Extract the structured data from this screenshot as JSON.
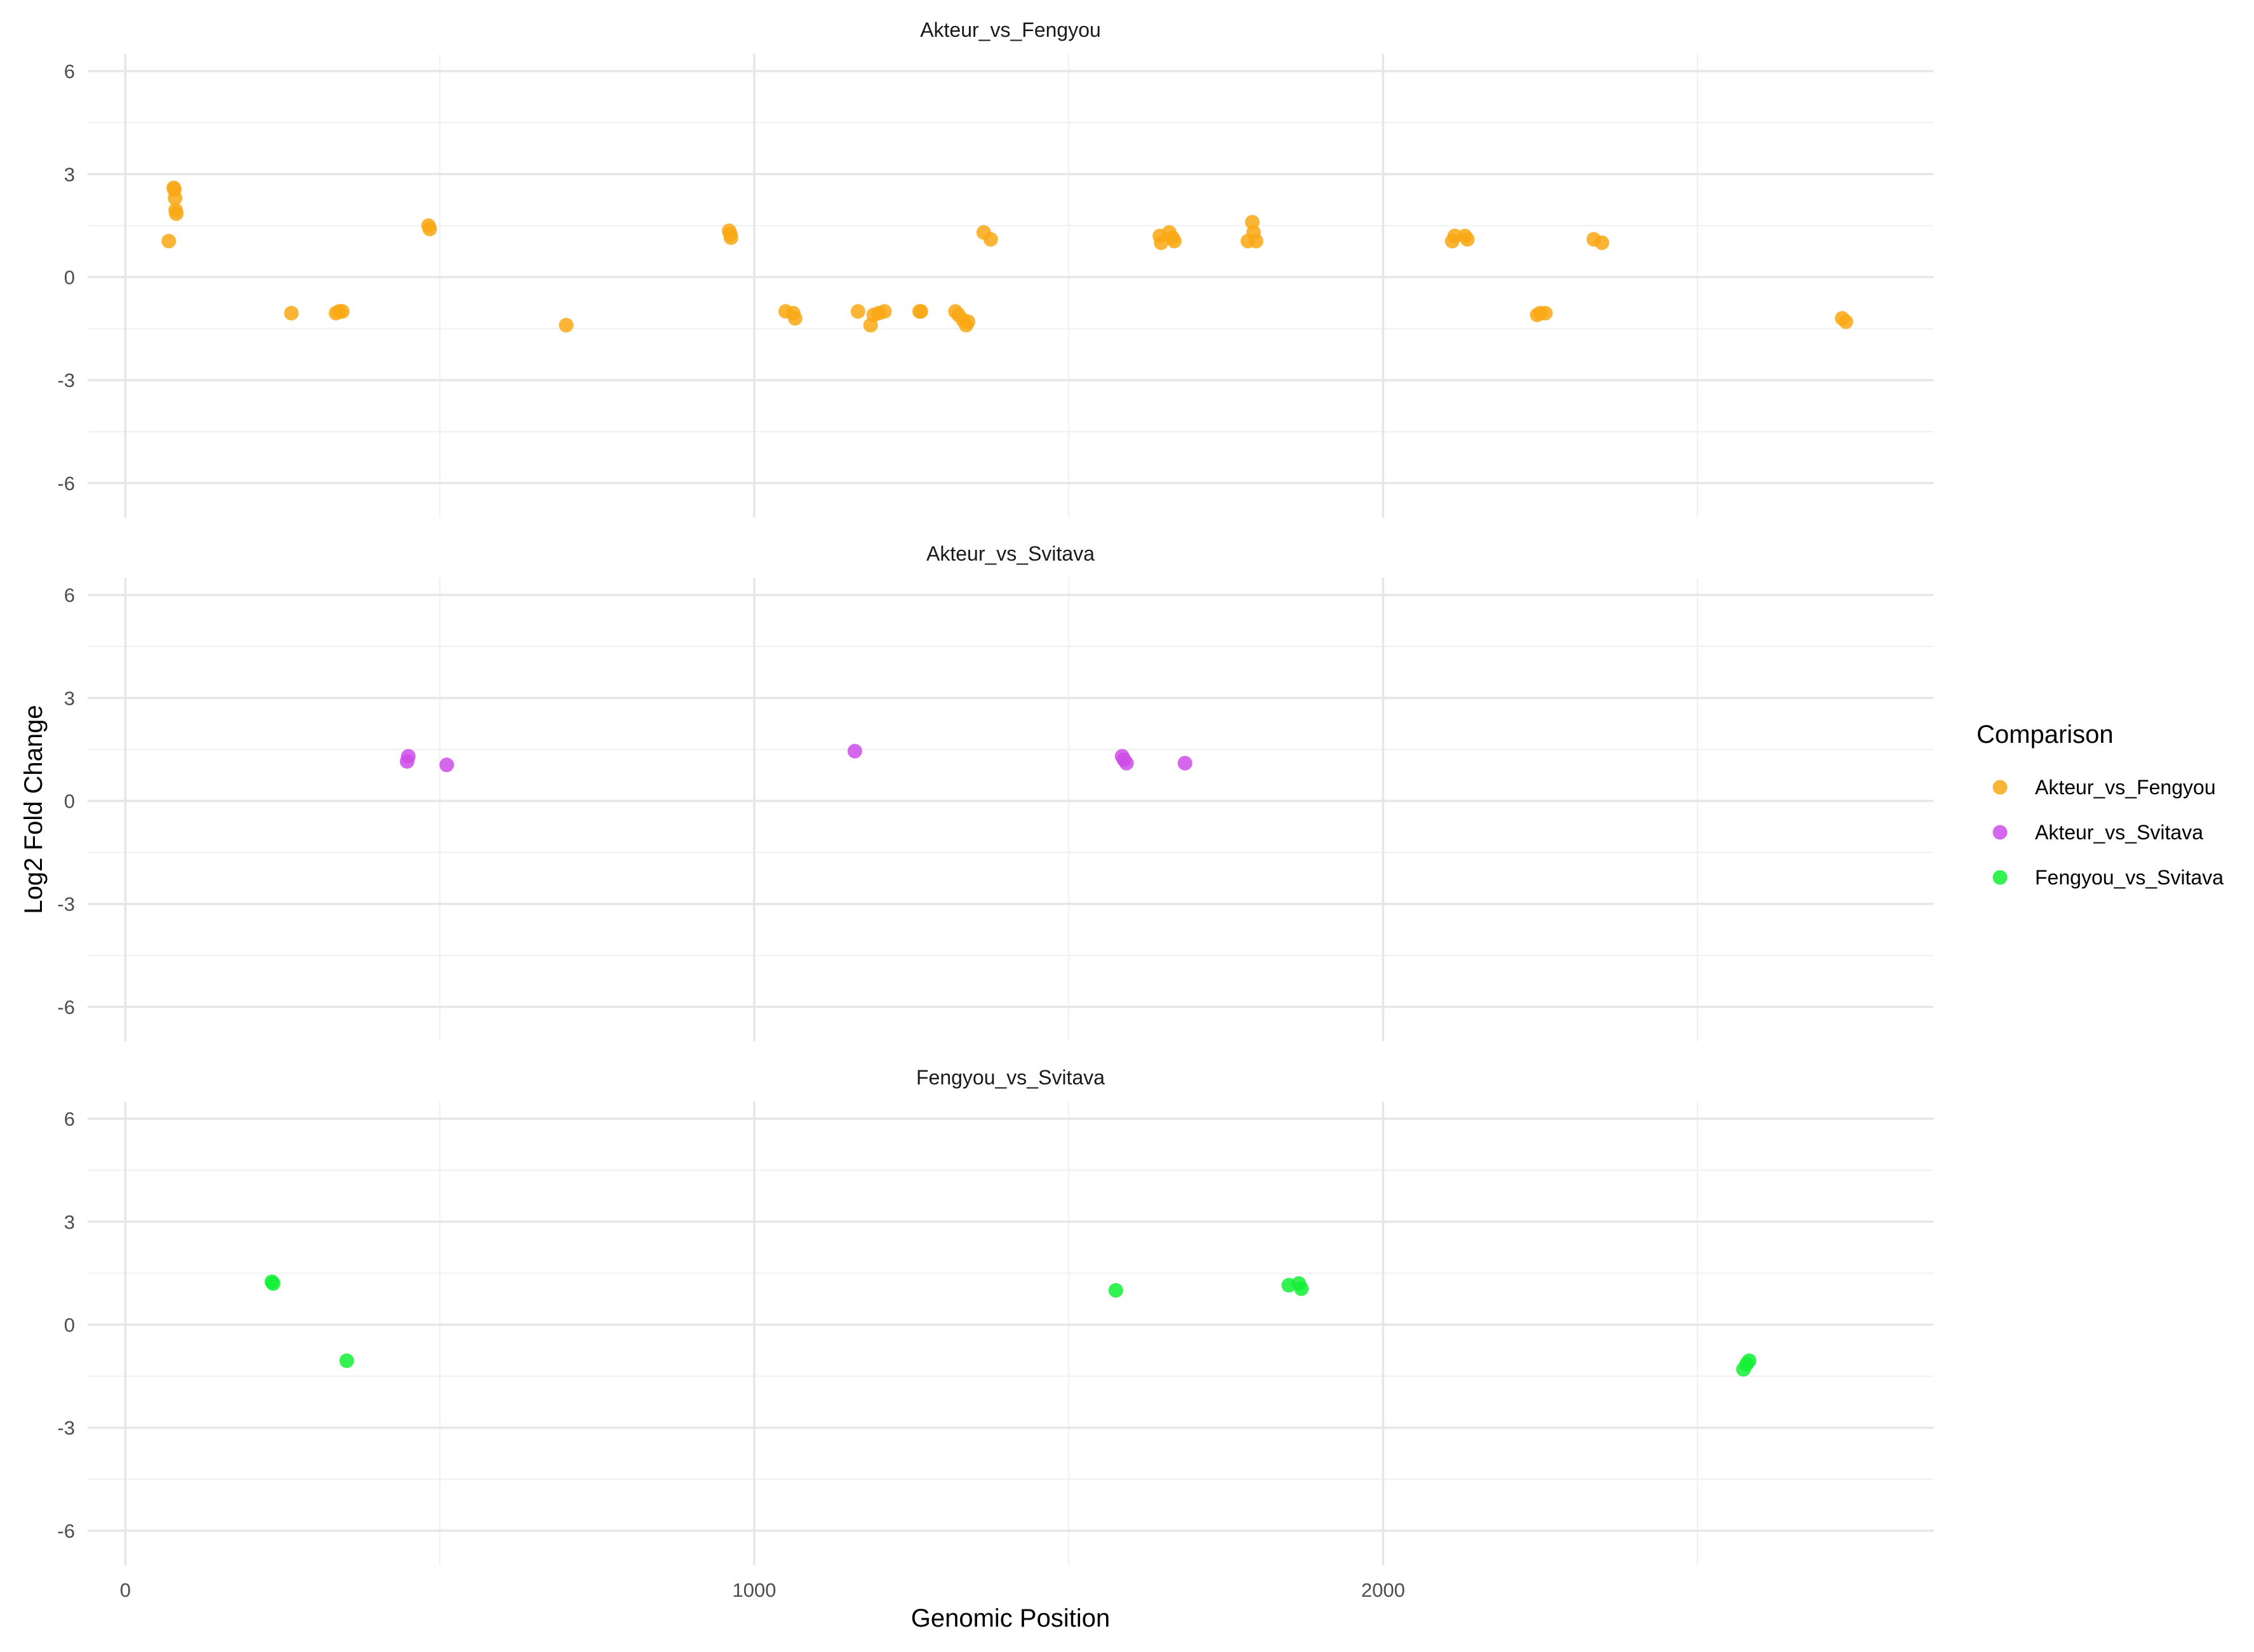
{
  "chart_data": {
    "type": "scatter",
    "layout": "faceted",
    "xlabel": "Genomic Position",
    "ylabel": "Log2 Fold Change",
    "xlim": [
      -60,
      2875
    ],
    "ylim": [
      -7,
      6.5
    ],
    "x_ticks": [
      0,
      1000,
      2000
    ],
    "y_ticks": [
      6,
      3,
      0,
      -3,
      -6
    ],
    "x_tick_labels": [
      "0",
      "1000",
      "2000"
    ],
    "y_tick_labels": [
      "6",
      "3",
      "0",
      "-3",
      "-6"
    ],
    "grid": true,
    "legend_position": "right",
    "legend": {
      "title": "Comparison",
      "entries": [
        "Akteur_vs_Fengyou",
        "Akteur_vs_Svitava",
        "Fengyou_vs_Svitava"
      ]
    },
    "facets": [
      {
        "title": "Akteur_vs_Fengyou",
        "color": "#F9A814",
        "points": [
          [
            69,
            1.05
          ],
          [
            77,
            2.6
          ],
          [
            78,
            2.55
          ],
          [
            79,
            2.3
          ],
          [
            80,
            1.95
          ],
          [
            81,
            1.85
          ],
          [
            264,
            -1.05
          ],
          [
            335,
            -1.05
          ],
          [
            340,
            -1.0
          ],
          [
            345,
            -1.0
          ],
          [
            482,
            1.5
          ],
          [
            484,
            1.4
          ],
          [
            701,
            -1.4
          ],
          [
            960,
            1.35
          ],
          [
            962,
            1.25
          ],
          [
            963,
            1.15
          ],
          [
            1050,
            -1.0
          ],
          [
            1062,
            -1.05
          ],
          [
            1065,
            -1.2
          ],
          [
            1165,
            -1.0
          ],
          [
            1185,
            -1.4
          ],
          [
            1190,
            -1.1
          ],
          [
            1198,
            -1.05
          ],
          [
            1207,
            -1.0
          ],
          [
            1263,
            -1.0
          ],
          [
            1265,
            -1.0
          ],
          [
            1320,
            -1.0
          ],
          [
            1325,
            -1.1
          ],
          [
            1332,
            -1.25
          ],
          [
            1337,
            -1.4
          ],
          [
            1340,
            -1.3
          ],
          [
            1365,
            1.3
          ],
          [
            1376,
            1.1
          ],
          [
            1645,
            1.2
          ],
          [
            1647,
            1.0
          ],
          [
            1660,
            1.3
          ],
          [
            1665,
            1.15
          ],
          [
            1668,
            1.05
          ],
          [
            1785,
            1.05
          ],
          [
            1792,
            1.6
          ],
          [
            1794,
            1.3
          ],
          [
            1798,
            1.05
          ],
          [
            2110,
            1.05
          ],
          [
            2114,
            1.2
          ],
          [
            2130,
            1.2
          ],
          [
            2134,
            1.1
          ],
          [
            2245,
            -1.1
          ],
          [
            2250,
            -1.05
          ],
          [
            2258,
            -1.05
          ],
          [
            2335,
            1.1
          ],
          [
            2348,
            1.0
          ],
          [
            2730,
            -1.2
          ],
          [
            2736,
            -1.3
          ]
        ]
      },
      {
        "title": "Akteur_vs_Svitava",
        "color": "#CC4CE8",
        "points": [
          [
            448,
            1.15
          ],
          [
            450,
            1.3
          ],
          [
            511,
            1.05
          ],
          [
            1160,
            1.45
          ],
          [
            1585,
            1.3
          ],
          [
            1588,
            1.2
          ],
          [
            1592,
            1.1
          ],
          [
            1685,
            1.1
          ]
        ]
      },
      {
        "title": "Fengyou_vs_Svitava",
        "color": "#12F035",
        "points": [
          [
            233,
            1.25
          ],
          [
            235,
            1.2
          ],
          [
            352,
            -1.05
          ],
          [
            1575,
            1.0
          ],
          [
            1850,
            1.15
          ],
          [
            1866,
            1.2
          ],
          [
            1870,
            1.05
          ],
          [
            2573,
            -1.3
          ],
          [
            2578,
            -1.15
          ],
          [
            2582,
            -1.05
          ]
        ]
      }
    ]
  }
}
